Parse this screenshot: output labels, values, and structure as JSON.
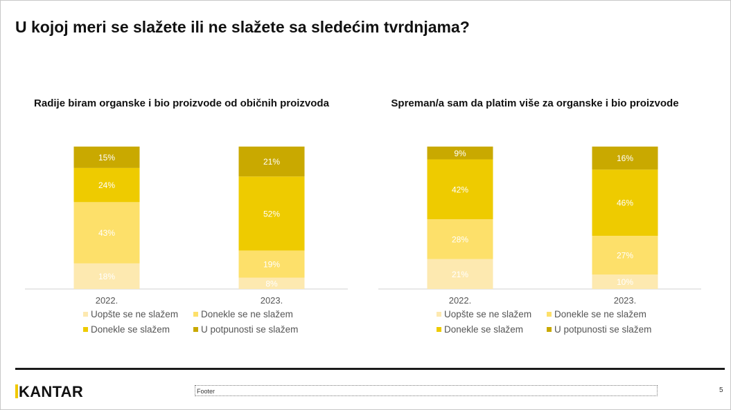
{
  "page": {
    "title": "U kojoj meri se slažete ili ne slažete sa sledećim tvrdnjama?",
    "logo": "KANTAR",
    "footer": "Footer",
    "page_number": "5"
  },
  "colors": {
    "Uopšte se ne slažem": "#fde9b0",
    "Donekle se ne slažem": "#fde06a",
    "Donekle se slažem": "#eecb00",
    "U potpunosti se slažem": "#c9a900"
  },
  "legend": [
    "Uopšte se ne slažem",
    "Donekle se ne slažem",
    "Donekle se slažem",
    "U potpunosti se slažem"
  ],
  "chart_data": [
    {
      "type": "bar",
      "stacked": true,
      "title": "Radije biram organske i bio proizvode od običnih proizvoda",
      "categories": [
        "2022.",
        "2023."
      ],
      "series": [
        {
          "name": "Uopšte se ne slažem",
          "values": [
            18,
            8
          ]
        },
        {
          "name": "Donekle se ne slažem",
          "values": [
            43,
            19
          ]
        },
        {
          "name": "Donekle se slažem",
          "values": [
            24,
            52
          ]
        },
        {
          "name": "U potpunosti se slažem",
          "values": [
            15,
            21
          ]
        }
      ],
      "value_suffix": "%",
      "legend_position": "bottom"
    },
    {
      "type": "bar",
      "stacked": true,
      "title": "Spreman/a sam da platim više za organske i bio proizvode",
      "categories": [
        "2022.",
        "2023."
      ],
      "series": [
        {
          "name": "Uopšte se ne slažem",
          "values": [
            21,
            10
          ]
        },
        {
          "name": "Donekle se ne slažem",
          "values": [
            28,
            27
          ]
        },
        {
          "name": "Donekle se slažem",
          "values": [
            42,
            46
          ]
        },
        {
          "name": "U potpunosti se slažem",
          "values": [
            9,
            16
          ]
        }
      ],
      "value_suffix": "%",
      "legend_position": "bottom"
    }
  ]
}
